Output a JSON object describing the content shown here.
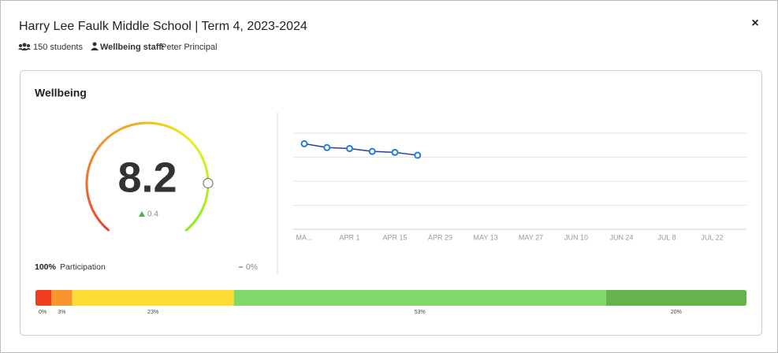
{
  "header": {
    "title": "Harry Lee Faulk Middle School | Term 4, 2023-2024",
    "students": "150 students",
    "staff_label": "Wellbeing staff:",
    "staff_name": "Peter Principal",
    "close": "×"
  },
  "panel": {
    "title": "Wellbeing"
  },
  "gauge": {
    "type": "gauge",
    "value": 8.2,
    "change": 0.4,
    "lim": [
      0,
      10
    ]
  },
  "participation": {
    "value": 100,
    "value_label": "100%",
    "label": "Participation",
    "change": 0,
    "change_label": "0%"
  },
  "chart_data": {
    "type": "line",
    "x": [
      "MA...",
      null,
      "APR 1",
      null,
      "APR 15",
      null,
      "APR 29",
      null,
      "MAY 13",
      null,
      "MAY 27",
      null,
      "JUN 10",
      null,
      "JUN 24",
      null,
      "JUL 8",
      null,
      "JUL 22",
      null
    ],
    "series": [
      {
        "color": "#2e3a9f",
        "values": [
          8.9,
          8.5,
          8.4,
          8.1,
          8.0,
          7.7,
          null,
          null,
          null,
          null,
          null,
          null,
          null,
          null,
          null,
          null,
          null,
          null,
          null,
          null
        ]
      }
    ],
    "ylim": [
      0,
      10
    ],
    "yticks": [
      0,
      2.5,
      5,
      7.5,
      10
    ],
    "grid": true
  },
  "distribution": {
    "type": "stacked-bar",
    "values": [
      0,
      3,
      23,
      53,
      20
    ],
    "value_labels": [
      "0%",
      "3%",
      "23%",
      "53%",
      "20%"
    ],
    "colors": [
      "#f03c1f",
      "#f7962f",
      "#fddc35",
      "#82d96a",
      "#66b24d"
    ]
  }
}
